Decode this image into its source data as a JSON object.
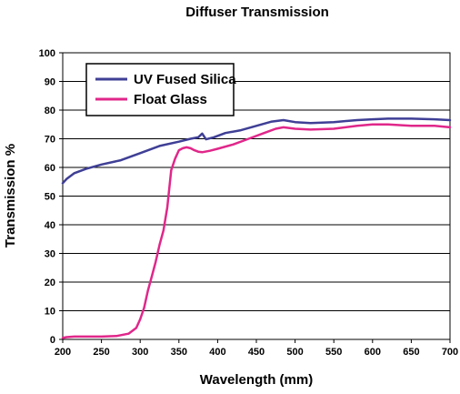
{
  "chart_data": {
    "type": "line",
    "title": "Diffuser Transmission",
    "xlabel": "Wavelength (mm)",
    "ylabel": "Transmission %",
    "xlim": [
      200,
      700
    ],
    "ylim": [
      0,
      100
    ],
    "xticks": [
      200,
      250,
      300,
      350,
      400,
      450,
      500,
      550,
      600,
      650,
      700
    ],
    "yticks": [
      0,
      10,
      20,
      30,
      40,
      50,
      60,
      70,
      80,
      90,
      100
    ],
    "grid": "horizontal",
    "legend_position": "top-left",
    "series": [
      {
        "name": "UV Fused Silica",
        "color": "#3f3f96",
        "x": [
          200,
          205,
          215,
          230,
          250,
          275,
          300,
          325,
          350,
          365,
          375,
          380,
          385,
          395,
          410,
          430,
          450,
          470,
          485,
          500,
          520,
          550,
          580,
          600,
          620,
          650,
          680,
          700
        ],
        "y": [
          54.5,
          56,
          58,
          59.5,
          61,
          62.5,
          65,
          67.5,
          69,
          70,
          70.5,
          71.8,
          69.8,
          70.5,
          72,
          73,
          74.5,
          76,
          76.5,
          75.8,
          75.5,
          75.8,
          76.5,
          76.8,
          77,
          77,
          76.8,
          76.5
        ]
      },
      {
        "name": "Float Glass",
        "color": "#e0278a",
        "x": [
          200,
          205,
          215,
          230,
          250,
          270,
          285,
          295,
          300,
          305,
          310,
          315,
          320,
          325,
          330,
          335,
          340,
          345,
          350,
          355,
          360,
          365,
          370,
          375,
          380,
          390,
          400,
          420,
          440,
          460,
          475,
          485,
          500,
          520,
          550,
          580,
          600,
          620,
          650,
          680,
          700
        ],
        "y": [
          0.5,
          0.8,
          1,
          1,
          1,
          1.2,
          2,
          4,
          7,
          11,
          17,
          22,
          27,
          33,
          38,
          46,
          59,
          63,
          66,
          66.7,
          67,
          66.7,
          66,
          65.5,
          65.3,
          65.8,
          66.5,
          68,
          70,
          72,
          73.5,
          74,
          73.5,
          73.2,
          73.5,
          74.5,
          75,
          75,
          74.5,
          74.5,
          74
        ]
      }
    ]
  }
}
